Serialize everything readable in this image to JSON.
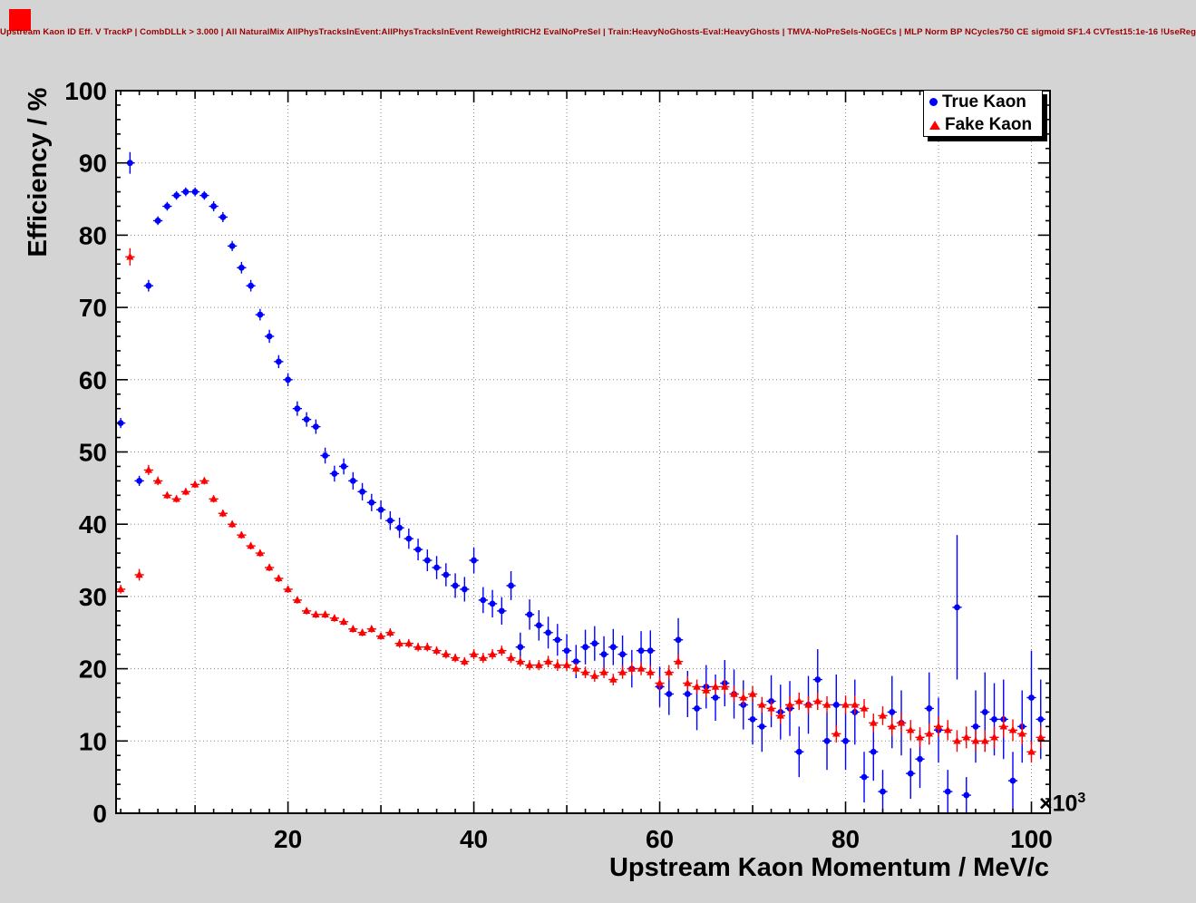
{
  "chart_data": {
    "type": "scatter",
    "title": "Upstream Kaon ID Eff. V TrackP | CombDLLk > 3.000 | All NaturalMix AllPhysTracksInEvent:AllPhysTracksInEvent ReweightRICH2 EvalNoPreSel | Train:HeavyNoGhosts-Eval:HeavyGhosts | TMVA-NoPreSels-NoGECs | MLP Norm BP NCycles750 CE sigmoid SF1.4 CVTest15:1e-16 !UseReg",
    "xlabel": "Upstream Kaon Momentum / MeV/c",
    "ylabel": "Efficiency / %",
    "x_axis_scale_label": {
      "prefix": "×10",
      "exponent": "3"
    },
    "xlim": [
      1.5,
      102
    ],
    "ylim": [
      0,
      100
    ],
    "x_tick_labels": [
      20,
      40,
      60,
      80,
      100
    ],
    "y_tick_labels": [
      0,
      10,
      20,
      30,
      40,
      50,
      60,
      70,
      80,
      90,
      100
    ],
    "grid": true,
    "legend_position": "top-right",
    "x_units": "10^3 MeV/c",
    "bin_width": 1,
    "x": [
      2,
      3,
      4,
      5,
      6,
      7,
      8,
      9,
      10,
      11,
      12,
      13,
      14,
      15,
      16,
      17,
      18,
      19,
      20,
      21,
      22,
      23,
      24,
      25,
      26,
      27,
      28,
      29,
      30,
      31,
      32,
      33,
      34,
      35,
      36,
      37,
      38,
      39,
      40,
      41,
      42,
      43,
      44,
      45,
      46,
      47,
      48,
      49,
      50,
      51,
      52,
      53,
      54,
      55,
      56,
      57,
      58,
      59,
      60,
      61,
      62,
      63,
      64,
      65,
      66,
      67,
      68,
      69,
      70,
      71,
      72,
      73,
      74,
      75,
      76,
      77,
      78,
      79,
      80,
      81,
      82,
      83,
      84,
      85,
      86,
      87,
      88,
      89,
      90,
      91,
      92,
      93,
      94,
      95,
      96,
      97,
      98,
      99,
      100,
      101
    ],
    "series": [
      {
        "name": "True Kaon",
        "marker": "circle",
        "color": "#0000ff",
        "y": [
          54,
          90,
          46,
          73,
          82,
          84,
          85.5,
          86,
          86,
          85.5,
          84,
          82.5,
          78.5,
          75.5,
          73,
          69,
          66,
          62.5,
          60,
          56,
          54.5,
          53.5,
          49.5,
          47,
          48,
          46,
          44.5,
          43,
          42,
          40.5,
          39.5,
          38,
          36.5,
          35,
          34,
          33,
          31.5,
          31,
          35,
          29.5,
          29,
          28,
          31.5,
          23,
          27.5,
          26,
          25,
          24,
          22.5,
          21,
          23,
          23.5,
          22,
          23,
          22,
          20,
          22.5,
          22.5,
          17.5,
          16.5,
          24,
          16.5,
          14.5,
          17.5,
          16,
          18,
          16.5,
          15,
          13,
          12,
          15.5,
          14,
          14.5,
          8.5,
          15,
          18.5,
          10,
          15,
          10,
          14,
          5,
          8.5,
          3,
          14,
          12.5,
          5.5,
          7.5,
          14.5,
          11.5,
          3,
          28.5,
          2.5,
          12,
          14,
          13,
          13,
          4.5,
          12,
          16,
          13
        ],
        "yerr": [
          0.7,
          1.5,
          0.7,
          0.8,
          0.6,
          0.6,
          0.6,
          0.6,
          0.6,
          0.6,
          0.7,
          0.7,
          0.7,
          0.8,
          0.8,
          0.8,
          0.9,
          0.9,
          0.9,
          1.0,
          1.0,
          1.0,
          1.1,
          1.1,
          1.1,
          1.2,
          1.2,
          1.2,
          1.3,
          1.3,
          1.4,
          1.4,
          1.5,
          1.5,
          1.6,
          1.6,
          1.7,
          1.7,
          1.8,
          1.8,
          1.9,
          1.9,
          2.0,
          2.0,
          2.1,
          2.1,
          2.2,
          2.2,
          2.3,
          2.3,
          2.4,
          2.4,
          2.5,
          2.5,
          2.6,
          2.6,
          2.7,
          2.8,
          2.8,
          2.9,
          3.0,
          3.2,
          3.0,
          3.0,
          3.2,
          3.2,
          3.4,
          3.4,
          3.5,
          3.5,
          3.6,
          3.8,
          3.8,
          3.5,
          4.0,
          4.2,
          4.0,
          4.2,
          4.0,
          4.5,
          3.5,
          4.0,
          3.0,
          5.0,
          4.5,
          3.5,
          4.0,
          5.0,
          4.5,
          3.0,
          10.0,
          2.5,
          5.0,
          5.5,
          5.0,
          5.5,
          4.0,
          5.0,
          6.5,
          5.5
        ]
      },
      {
        "name": "Fake Kaon",
        "marker": "triangle",
        "color": "#ff0000",
        "y": [
          31,
          77,
          33,
          47.5,
          46,
          44,
          43.5,
          44.5,
          45.5,
          46,
          43.5,
          41.5,
          40,
          38.5,
          37,
          36,
          34,
          32.5,
          31,
          29.5,
          28,
          27.5,
          27.5,
          27,
          26.5,
          25.5,
          25,
          25.5,
          24.5,
          25,
          23.5,
          23.5,
          23,
          23,
          22.5,
          22,
          21.5,
          21,
          22,
          21.5,
          22,
          22.5,
          21.5,
          21,
          20.5,
          20.5,
          21,
          20.5,
          20.5,
          20,
          19.5,
          19,
          19.5,
          18.5,
          19.5,
          20,
          20,
          19.5,
          18,
          19.5,
          21,
          18,
          17.5,
          17,
          17.5,
          17.5,
          16.5,
          16,
          16.5,
          15,
          14.5,
          13.5,
          15,
          15.5,
          15,
          15.5,
          15,
          11,
          15,
          15,
          14.5,
          12.5,
          13.5,
          12,
          12.5,
          11.5,
          10.5,
          11,
          12,
          11.5,
          10,
          10.5,
          10,
          10,
          10.5,
          12,
          11.5,
          11,
          8.5,
          10.5
        ],
        "yerr": [
          0.6,
          1.2,
          0.8,
          0.7,
          0.6,
          0.5,
          0.5,
          0.5,
          0.5,
          0.5,
          0.5,
          0.5,
          0.5,
          0.5,
          0.5,
          0.5,
          0.5,
          0.5,
          0.5,
          0.5,
          0.5,
          0.5,
          0.5,
          0.5,
          0.5,
          0.5,
          0.5,
          0.5,
          0.5,
          0.6,
          0.6,
          0.6,
          0.6,
          0.6,
          0.6,
          0.6,
          0.6,
          0.6,
          0.7,
          0.7,
          0.7,
          0.7,
          0.7,
          0.7,
          0.7,
          0.7,
          0.8,
          0.8,
          0.8,
          0.8,
          0.8,
          0.8,
          0.8,
          0.8,
          0.9,
          0.9,
          0.9,
          0.9,
          0.9,
          1.0,
          1.0,
          1.0,
          1.0,
          1.0,
          1.0,
          1.0,
          1.1,
          1.1,
          1.1,
          1.1,
          1.1,
          1.1,
          1.2,
          1.2,
          1.2,
          1.2,
          1.2,
          1.2,
          1.3,
          1.3,
          1.3,
          1.3,
          1.3,
          1.3,
          1.4,
          1.4,
          1.4,
          1.4,
          1.4,
          1.4,
          1.5,
          1.5,
          1.5,
          1.5,
          1.5,
          1.5,
          1.5,
          1.5,
          1.5,
          1.5
        ]
      }
    ]
  },
  "colors": {
    "background": "#d4d4d4",
    "plot_background": "#ffffff",
    "frame": "#000000",
    "grid": "#888888",
    "title_text": "#990000",
    "corner_marker": "#ff0000",
    "true_kaon": "#0000ff",
    "fake_kaon": "#ff0000"
  }
}
